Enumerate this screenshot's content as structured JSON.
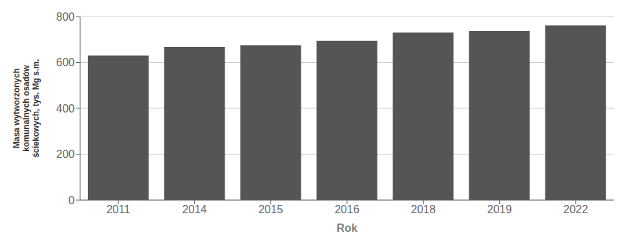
{
  "chart_data": {
    "type": "bar",
    "categories": [
      "2011",
      "2014",
      "2015",
      "2016",
      "2018",
      "2019",
      "2022"
    ],
    "values": [
      630,
      668,
      675,
      695,
      730,
      737,
      762
    ],
    "color": "#555555",
    "xlabel": "Rok",
    "ylabel": "Masa wytworzonych\nkomunalnych osadów\nściekowych, tys. Mg s.m.",
    "ylim": [
      0,
      800
    ],
    "yticks": [
      0,
      200,
      400,
      600,
      800
    ],
    "grid": true
  }
}
